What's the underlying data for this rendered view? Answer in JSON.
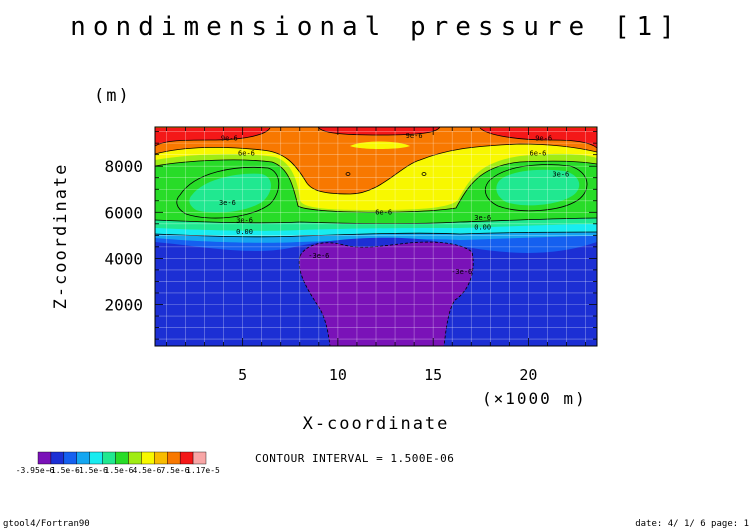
{
  "chart_data": {
    "type": "contour",
    "title": "nondimensional pressure [1]",
    "xlabel": "X-coordinate",
    "ylabel": "Z-coordinate",
    "x_unit": "(×1000 m)",
    "y_unit": "(m)",
    "xlim": [
      0.4,
      23.6
    ],
    "ylim": [
      200,
      9700
    ],
    "xticks": [
      5,
      10,
      15,
      20
    ],
    "yticks": [
      2000,
      4000,
      6000,
      8000
    ],
    "contour_interval": "CONTOUR INTERVAL = 1.500E-06",
    "contour_labels": [
      {
        "text": "9e-6",
        "x": 4.3,
        "y": 9200
      },
      {
        "text": "9e-6",
        "x": 14.0,
        "y": 9300
      },
      {
        "text": "9e-6",
        "x": 20.8,
        "y": 9200
      },
      {
        "text": "6e-6",
        "x": 5.2,
        "y": 8550
      },
      {
        "text": "6e-6",
        "x": 20.5,
        "y": 8550
      },
      {
        "text": "6e-6",
        "x": 12.4,
        "y": 6000
      },
      {
        "text": "3e-6",
        "x": 4.2,
        "y": 6400
      },
      {
        "text": "3e-6",
        "x": 21.7,
        "y": 7650
      },
      {
        "text": "3e-6",
        "x": 5.1,
        "y": 5650
      },
      {
        "text": "3e-6",
        "x": 17.6,
        "y": 5750
      },
      {
        "text": "0.00",
        "x": 5.1,
        "y": 5150
      },
      {
        "text": "0.00",
        "x": 17.6,
        "y": 5350
      },
      {
        "text": "-3e-6",
        "x": 9.0,
        "y": 4100
      },
      {
        "text": "-3e-6",
        "x": 16.5,
        "y": 3400
      }
    ],
    "colorbar": {
      "colors": [
        "#7a12b8",
        "#1c2fd4",
        "#1560f0",
        "#14a6f0",
        "#18ecf0",
        "#20e890",
        "#28dc28",
        "#a0ec14",
        "#f8f800",
        "#f8bc00",
        "#f87800",
        "#f41818",
        "#f8a6a6"
      ],
      "labels": [
        "-3.95e-6",
        "-1.5e-6",
        "-1.5e-6",
        "1.5e-6",
        "4.5e-6",
        "7.5e-6",
        "1.17e-5"
      ]
    }
  },
  "footer": {
    "left": "gtool4/Fortran90",
    "right": "date: 4/ 1/ 6 page: 1"
  }
}
